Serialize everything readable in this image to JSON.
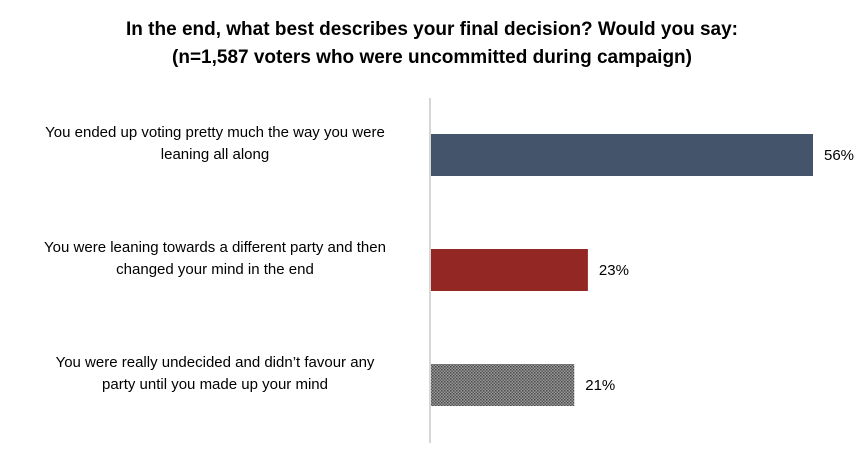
{
  "chart_data": {
    "type": "bar",
    "orientation": "horizontal",
    "title": "In the end, what best describes your final decision? Would you say:",
    "subtitle": "(n=1,587 voters who were uncommitted during campaign)",
    "categories": [
      [
        "You ended up voting pretty much the way you were",
        "leaning all along"
      ],
      [
        "You were leaning towards a different party and then",
        "changed your mind in the end"
      ],
      [
        "You were really undecided and didn’t favour any",
        "party until you made up your mind"
      ]
    ],
    "values": [
      56,
      23,
      21
    ],
    "value_labels": [
      "56%",
      "23%",
      "21%"
    ],
    "unit": "%",
    "xlim": [
      0,
      65
    ],
    "grid": false,
    "legend": "none",
    "bar_colors": [
      "#44546A",
      "#922724",
      "#808080"
    ],
    "bar_patterns": [
      "solid",
      "solid",
      "dotted"
    ]
  }
}
